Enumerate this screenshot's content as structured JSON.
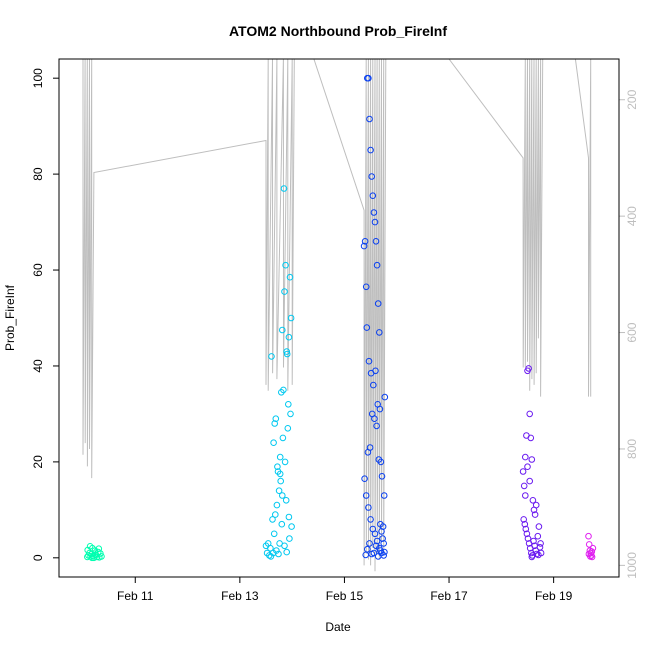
{
  "chart_data": {
    "type": "scatter",
    "title": "ATOM2 Northbound Prob_FireInf",
    "xlabel": "Date",
    "ylabel": "Prob_FireInf",
    "xlim": [
      "2024-02-09T13:00",
      "2024-02-20T06:00"
    ],
    "ylim": [
      -4,
      104
    ],
    "x_ticks": [
      {
        "x": "2024-02-11T00:00",
        "label": "Feb 11"
      },
      {
        "x": "2024-02-13T00:00",
        "label": "Feb 13"
      },
      {
        "x": "2024-02-15T00:00",
        "label": "Feb 15"
      },
      {
        "x": "2024-02-17T00:00",
        "label": "Feb 17"
      },
      {
        "x": "2024-02-19T00:00",
        "label": "Feb 19"
      }
    ],
    "y_ticks": [
      0,
      20,
      40,
      60,
      80,
      100
    ],
    "y2_ticks": [
      200,
      400,
      600,
      800,
      1000
    ],
    "y2_lim": [
      1020,
      130
    ],
    "grid": false,
    "series": [
      {
        "color": "#00FFB0",
        "points": [
          [
            "2024-02-10T02:00",
            0.2
          ],
          [
            "2024-02-10T02:30",
            0.5
          ],
          [
            "2024-02-10T03:00",
            1.0
          ],
          [
            "2024-02-10T03:30",
            0.3
          ],
          [
            "2024-02-10T04:00",
            0.8
          ],
          [
            "2024-02-10T04:20",
            2.0
          ],
          [
            "2024-02-10T04:40",
            0.4
          ],
          [
            "2024-02-10T05:00",
            0.0
          ],
          [
            "2024-02-10T05:30",
            1.5
          ],
          [
            "2024-02-10T06:00",
            0.6
          ],
          [
            "2024-02-10T06:30",
            0.2
          ],
          [
            "2024-02-10T07:00",
            1.2
          ],
          [
            "2024-02-10T07:30",
            0.1
          ],
          [
            "2024-02-10T08:00",
            0.9
          ],
          [
            "2024-02-10T08:30",
            0.3
          ],
          [
            "2024-02-10T02:10",
            1.6
          ],
          [
            "2024-02-10T03:15",
            2.4
          ],
          [
            "2024-02-10T04:10",
            0.0
          ],
          [
            "2024-02-10T05:45",
            0.7
          ],
          [
            "2024-02-10T07:15",
            1.9
          ]
        ]
      },
      {
        "color": "#00C8F0",
        "points": [
          [
            "2024-02-13T12:00",
            2.5
          ],
          [
            "2024-02-13T12:30",
            1.0
          ],
          [
            "2024-02-13T13:00",
            3.0
          ],
          [
            "2024-02-13T13:30",
            0.5
          ],
          [
            "2024-02-13T14:00",
            2.0
          ],
          [
            "2024-02-13T14:30",
            42.0
          ],
          [
            "2024-02-13T15:00",
            8.0
          ],
          [
            "2024-02-13T15:30",
            24.0
          ],
          [
            "2024-02-13T16:00",
            28.0
          ],
          [
            "2024-02-13T16:30",
            29.0
          ],
          [
            "2024-02-13T17:00",
            11.0
          ],
          [
            "2024-02-13T17:30",
            18.0
          ],
          [
            "2024-02-13T18:00",
            14.0
          ],
          [
            "2024-02-13T18:30",
            21.0
          ],
          [
            "2024-02-13T19:00",
            34.5
          ],
          [
            "2024-02-13T19:30",
            47.5
          ],
          [
            "2024-02-13T20:00",
            35.0
          ],
          [
            "2024-02-13T20:30",
            55.5
          ],
          [
            "2024-02-13T21:00",
            61.0
          ],
          [
            "2024-02-13T21:30",
            43.0
          ],
          [
            "2024-02-13T22:00",
            27.0
          ],
          [
            "2024-02-13T22:30",
            46.0
          ],
          [
            "2024-02-13T23:00",
            58.5
          ],
          [
            "2024-02-13T23:30",
            50.0
          ],
          [
            "2024-02-13T20:15",
            77.0
          ],
          [
            "2024-02-13T21:45",
            42.5
          ],
          [
            "2024-02-13T19:45",
            25.0
          ],
          [
            "2024-02-13T18:45",
            16.0
          ],
          [
            "2024-02-13T17:15",
            19.0
          ],
          [
            "2024-02-13T16:15",
            9.0
          ],
          [
            "2024-02-13T15:45",
            5.0
          ],
          [
            "2024-02-13T22:15",
            32.0
          ],
          [
            "2024-02-13T23:15",
            30.0
          ],
          [
            "2024-02-13T20:45",
            20.0
          ],
          [
            "2024-02-13T21:15",
            12.0
          ],
          [
            "2024-02-13T19:15",
            7.0
          ],
          [
            "2024-02-13T18:15",
            3.0
          ],
          [
            "2024-02-13T16:45",
            1.5
          ],
          [
            "2024-02-13T17:45",
            0.8
          ],
          [
            "2024-02-13T22:45",
            4.0
          ],
          [
            "2024-02-13T23:45",
            6.5
          ],
          [
            "2024-02-13T20:30",
            2.5
          ],
          [
            "2024-02-13T21:30",
            1.2
          ],
          [
            "2024-02-13T22:30",
            8.5
          ],
          [
            "2024-02-13T19:30",
            13.0
          ],
          [
            "2024-02-13T18:30",
            17.5
          ],
          [
            "2024-02-13T15:15",
            1.0
          ],
          [
            "2024-02-13T14:15",
            0.3
          ]
        ]
      },
      {
        "color": "#0A40F0",
        "points": [
          [
            "2024-02-15T09:00",
            65.0
          ],
          [
            "2024-02-15T09:30",
            66.0
          ],
          [
            "2024-02-15T10:00",
            56.5
          ],
          [
            "2024-02-15T10:30",
            100.0
          ],
          [
            "2024-02-15T11:00",
            100.0
          ],
          [
            "2024-02-15T11:30",
            91.5
          ],
          [
            "2024-02-15T12:00",
            85.0
          ],
          [
            "2024-02-15T12:30",
            79.5
          ],
          [
            "2024-02-15T13:00",
            75.5
          ],
          [
            "2024-02-15T13:30",
            72.0
          ],
          [
            "2024-02-15T14:00",
            70.0
          ],
          [
            "2024-02-15T14:30",
            66.0
          ],
          [
            "2024-02-15T15:00",
            61.0
          ],
          [
            "2024-02-15T15:30",
            53.0
          ],
          [
            "2024-02-15T16:00",
            47.0
          ],
          [
            "2024-02-15T10:15",
            48.0
          ],
          [
            "2024-02-15T11:15",
            41.0
          ],
          [
            "2024-02-15T12:15",
            38.5
          ],
          [
            "2024-02-15T13:15",
            36.0
          ],
          [
            "2024-02-15T14:15",
            39.0
          ],
          [
            "2024-02-15T15:15",
            32.0
          ],
          [
            "2024-02-15T16:15",
            31.0
          ],
          [
            "2024-02-15T12:45",
            30.0
          ],
          [
            "2024-02-15T13:45",
            29.0
          ],
          [
            "2024-02-15T14:45",
            27.5
          ],
          [
            "2024-02-15T11:45",
            23.0
          ],
          [
            "2024-02-15T10:45",
            22.0
          ],
          [
            "2024-02-15T15:45",
            20.5
          ],
          [
            "2024-02-15T16:45",
            20.0
          ],
          [
            "2024-02-15T17:15",
            17.0
          ],
          [
            "2024-02-15T09:15",
            16.5
          ],
          [
            "2024-02-15T10:00",
            13.0
          ],
          [
            "2024-02-15T11:00",
            10.5
          ],
          [
            "2024-02-15T12:00",
            8.0
          ],
          [
            "2024-02-15T13:00",
            6.0
          ],
          [
            "2024-02-15T14:00",
            5.0
          ],
          [
            "2024-02-15T15:00",
            3.5
          ],
          [
            "2024-02-15T16:00",
            2.0
          ],
          [
            "2024-02-15T17:00",
            1.0
          ],
          [
            "2024-02-15T18:00",
            0.5
          ],
          [
            "2024-02-15T18:30",
            33.5
          ],
          [
            "2024-02-15T18:15",
            13.0
          ],
          [
            "2024-02-15T17:45",
            6.5
          ],
          [
            "2024-02-15T17:30",
            4.0
          ],
          [
            "2024-02-15T16:30",
            1.5
          ],
          [
            "2024-02-15T15:30",
            0.3
          ],
          [
            "2024-02-15T14:30",
            2.5
          ],
          [
            "2024-02-15T13:30",
            1.0
          ],
          [
            "2024-02-15T12:30",
            0.8
          ],
          [
            "2024-02-15T11:30",
            3.0
          ],
          [
            "2024-02-15T10:30",
            1.8
          ],
          [
            "2024-02-15T09:45",
            0.6
          ],
          [
            "2024-02-15T16:30",
            7.0
          ],
          [
            "2024-02-15T17:00",
            5.5
          ],
          [
            "2024-02-15T18:00",
            3.0
          ],
          [
            "2024-02-15T18:20",
            1.2
          ]
        ]
      },
      {
        "color": "#6A1AF0",
        "points": [
          [
            "2024-02-18T10:00",
            18.0
          ],
          [
            "2024-02-18T10:30",
            15.0
          ],
          [
            "2024-02-18T11:00",
            13.0
          ],
          [
            "2024-02-18T11:30",
            25.5
          ],
          [
            "2024-02-18T12:00",
            39.0
          ],
          [
            "2024-02-18T12:30",
            39.5
          ],
          [
            "2024-02-18T13:00",
            30.0
          ],
          [
            "2024-02-18T13:30",
            25.0
          ],
          [
            "2024-02-18T14:00",
            20.5
          ],
          [
            "2024-02-18T14:30",
            12.0
          ],
          [
            "2024-02-18T15:00",
            10.0
          ],
          [
            "2024-02-18T10:15",
            8.0
          ],
          [
            "2024-02-18T10:45",
            7.0
          ],
          [
            "2024-02-18T11:15",
            6.0
          ],
          [
            "2024-02-18T11:45",
            5.0
          ],
          [
            "2024-02-18T12:15",
            4.0
          ],
          [
            "2024-02-18T12:45",
            3.0
          ],
          [
            "2024-02-18T13:15",
            2.0
          ],
          [
            "2024-02-18T13:45",
            1.0
          ],
          [
            "2024-02-18T14:15",
            0.5
          ],
          [
            "2024-02-18T14:45",
            3.5
          ],
          [
            "2024-02-18T15:15",
            2.5
          ],
          [
            "2024-02-18T15:45",
            1.5
          ],
          [
            "2024-02-18T16:15",
            0.8
          ],
          [
            "2024-02-18T16:45",
            4.5
          ],
          [
            "2024-02-18T17:15",
            6.5
          ],
          [
            "2024-02-18T17:45",
            2.2
          ],
          [
            "2024-02-18T18:15",
            1.0
          ],
          [
            "2024-02-18T15:30",
            9.0
          ],
          [
            "2024-02-18T16:00",
            11.0
          ],
          [
            "2024-02-18T13:00",
            16.0
          ],
          [
            "2024-02-18T12:00",
            19.0
          ],
          [
            "2024-02-18T11:00",
            21.0
          ],
          [
            "2024-02-18T14:00",
            0.2
          ],
          [
            "2024-02-18T17:00",
            0.6
          ],
          [
            "2024-02-18T18:00",
            3.0
          ]
        ]
      },
      {
        "color": "#E020F0",
        "points": [
          [
            "2024-02-19T16:00",
            4.5
          ],
          [
            "2024-02-19T16:20",
            2.8
          ],
          [
            "2024-02-19T16:40",
            1.5
          ],
          [
            "2024-02-19T17:00",
            1.0
          ],
          [
            "2024-02-19T17:20",
            0.5
          ],
          [
            "2024-02-19T17:40",
            0.2
          ],
          [
            "2024-02-19T18:00",
            2.0
          ],
          [
            "2024-02-19T16:10",
            0.8
          ],
          [
            "2024-02-19T16:50",
            0.3
          ],
          [
            "2024-02-19T17:30",
            1.3
          ]
        ]
      }
    ],
    "secondary_series": {
      "color": "#bebebe",
      "axis": "right",
      "points": [
        [
          "2024-02-10T00:00",
          130
        ],
        [
          "2024-02-10T00:01",
          810
        ],
        [
          "2024-02-10T01:00",
          130
        ],
        [
          "2024-02-10T01:01",
          790
        ],
        [
          "2024-02-10T02:00",
          130
        ],
        [
          "2024-02-10T02:01",
          830
        ],
        [
          "2024-02-10T03:00",
          130
        ],
        [
          "2024-02-10T03:01",
          800
        ],
        [
          "2024-02-10T04:00",
          130
        ],
        [
          "2024-02-10T04:01",
          850
        ],
        [
          "2024-02-10T05:00",
          325
        ],
        [
          "2024-02-13T12:00",
          270
        ],
        [
          "2024-02-13T12:01",
          690
        ],
        [
          "2024-02-13T13:00",
          130
        ],
        [
          "2024-02-13T13:01",
          700
        ],
        [
          "2024-02-13T15:00",
          130
        ],
        [
          "2024-02-13T15:01",
          670
        ],
        [
          "2024-02-13T17:00",
          130
        ],
        [
          "2024-02-13T17:01",
          680
        ],
        [
          "2024-02-13T20:00",
          130
        ],
        [
          "2024-02-13T20:01",
          660
        ],
        [
          "2024-02-13T22:00",
          130
        ],
        [
          "2024-02-13T22:01",
          700
        ],
        [
          "2024-02-14T00:00",
          130
        ],
        [
          "2024-02-14T00:01",
          690
        ],
        [
          "2024-02-14T01:00",
          130
        ],
        [
          "2024-02-14T02:00",
          130
        ],
        [
          "2024-02-14T10:00",
          130
        ],
        [
          "2024-02-15T09:00",
          390
        ],
        [
          "2024-02-15T09:01",
          1000
        ],
        [
          "2024-02-15T10:00",
          130
        ],
        [
          "2024-02-15T10:01",
          980
        ],
        [
          "2024-02-15T11:00",
          130
        ],
        [
          "2024-02-15T11:01",
          990
        ],
        [
          "2024-02-15T12:00",
          130
        ],
        [
          "2024-02-15T12:01",
          1000
        ],
        [
          "2024-02-15T13:00",
          130
        ],
        [
          "2024-02-15T13:01",
          970
        ],
        [
          "2024-02-15T14:00",
          130
        ],
        [
          "2024-02-15T14:01",
          1010
        ],
        [
          "2024-02-15T15:00",
          130
        ],
        [
          "2024-02-15T15:01",
          980
        ],
        [
          "2024-02-15T16:00",
          130
        ],
        [
          "2024-02-15T16:01",
          990
        ],
        [
          "2024-02-15T17:00",
          130
        ],
        [
          "2024-02-15T17:01",
          960
        ],
        [
          "2024-02-15T18:00",
          130
        ],
        [
          "2024-02-15T18:01",
          980
        ],
        [
          "2024-02-15T19:00",
          130
        ],
        [
          "2024-02-15T20:00",
          130
        ],
        [
          "2024-02-17T00:00",
          130
        ],
        [
          "2024-02-18T10:00",
          300
        ],
        [
          "2024-02-18T10:01",
          660
        ],
        [
          "2024-02-18T11:00",
          130
        ],
        [
          "2024-02-18T11:01",
          660
        ],
        [
          "2024-02-18T12:00",
          130
        ],
        [
          "2024-02-18T12:01",
          650
        ],
        [
          "2024-02-18T13:00",
          130
        ],
        [
          "2024-02-18T13:01",
          700
        ],
        [
          "2024-02-18T14:00",
          130
        ],
        [
          "2024-02-18T14:01",
          680
        ],
        [
          "2024-02-18T15:00",
          130
        ],
        [
          "2024-02-18T15:01",
          690
        ],
        [
          "2024-02-18T16:00",
          130
        ],
        [
          "2024-02-18T16:01",
          670
        ],
        [
          "2024-02-18T17:00",
          130
        ],
        [
          "2024-02-18T17:01",
          610
        ],
        [
          "2024-02-18T18:00",
          130
        ],
        [
          "2024-02-18T18:01",
          710
        ],
        [
          "2024-02-18T19:00",
          130
        ],
        [
          "2024-02-18T20:00",
          130
        ],
        [
          "2024-02-19T10:00",
          130
        ],
        [
          "2024-02-19T16:00",
          300
        ],
        [
          "2024-02-19T16:01",
          710
        ],
        [
          "2024-02-19T17:00",
          130
        ],
        [
          "2024-02-19T17:01",
          710
        ]
      ]
    }
  }
}
